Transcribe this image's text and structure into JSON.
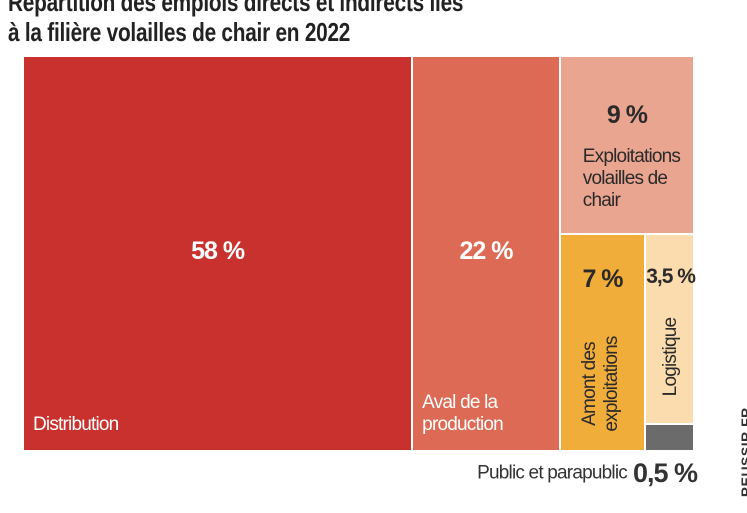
{
  "chart_data": {
    "type": "treemap",
    "title": [
      "Répartition des emplois directs et indirects liés",
      "à la filière volailles de chair en 2022"
    ],
    "categories": [
      "Distribution",
      "Aval de la production",
      "Exploitations volailles de chair",
      "Amont des exploitations",
      "Logistique",
      "Public et parapublic"
    ],
    "values": [
      58,
      22,
      9,
      7,
      3.5,
      0.5
    ],
    "value_labels": [
      "58 %",
      "22 %",
      "9 %",
      "7 %",
      "3,5 %",
      "0,5 %"
    ],
    "colors": [
      "#c8312e",
      "#dc6a55",
      "#e9a58f",
      "#f0ad3a",
      "#fbdcae",
      "#6b6b6b"
    ],
    "credit": "REUSSIR.FR"
  }
}
